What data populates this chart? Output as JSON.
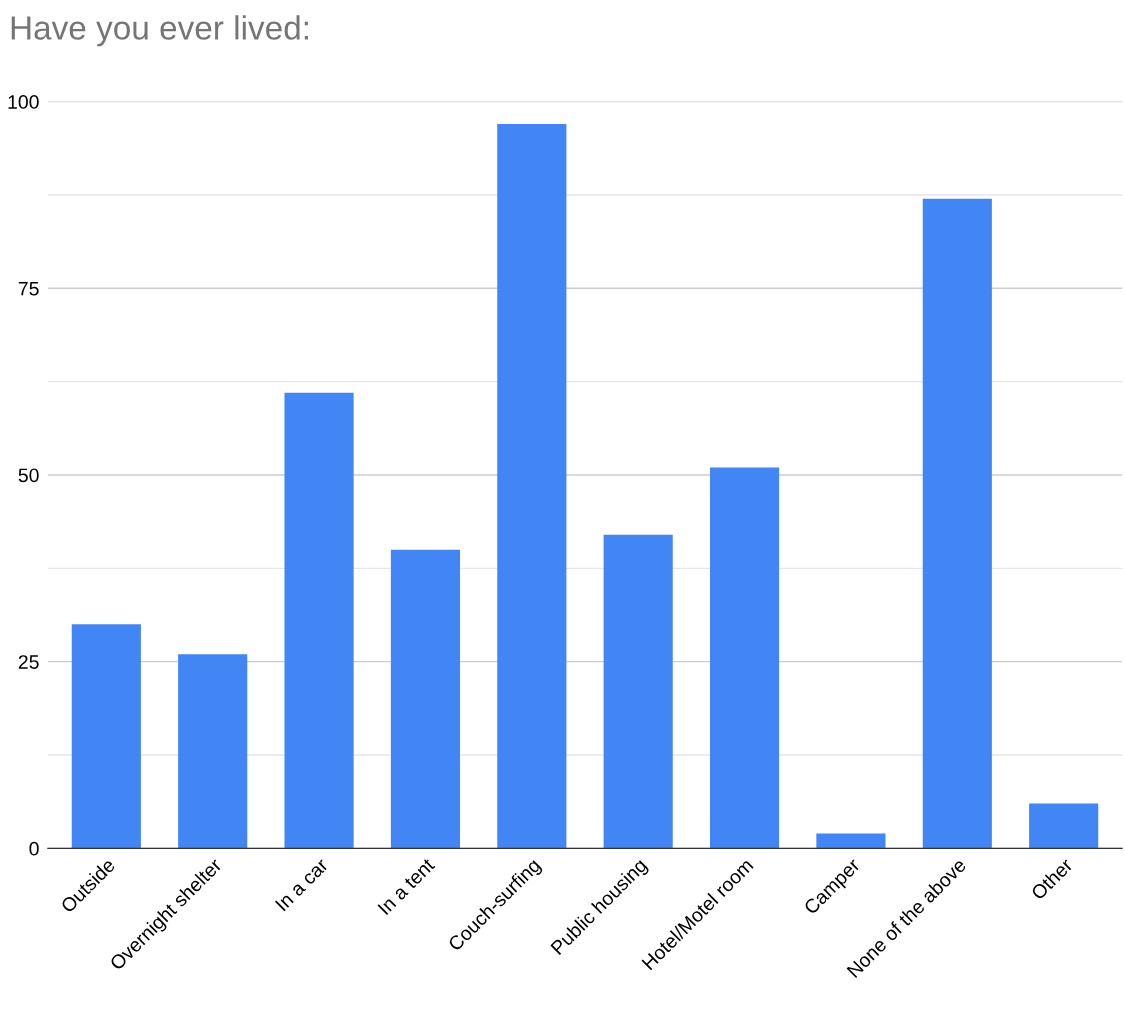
{
  "chart_data": {
    "type": "bar",
    "title": "Have you ever lived:",
    "categories": [
      "Outside",
      "Overnight shelter",
      "In a car",
      "In a tent",
      "Couch-surfing",
      "Public housing",
      "Hotel/Motel room",
      "Camper",
      "None of the above",
      "Other"
    ],
    "values": [
      30,
      26,
      61,
      40,
      97,
      42,
      51,
      2,
      87,
      6
    ],
    "color": "#4285f4",
    "ylim": [
      0,
      100
    ],
    "yticks": [
      0,
      {
        "value": 12.5,
        "label": null
      },
      25,
      {
        "value": 37.5,
        "label": null
      },
      50,
      {
        "value": 62.5,
        "label": null
      },
      75,
      {
        "value": 87.5,
        "label": null
      },
      100
    ],
    "grid": "y",
    "legend": false
  }
}
